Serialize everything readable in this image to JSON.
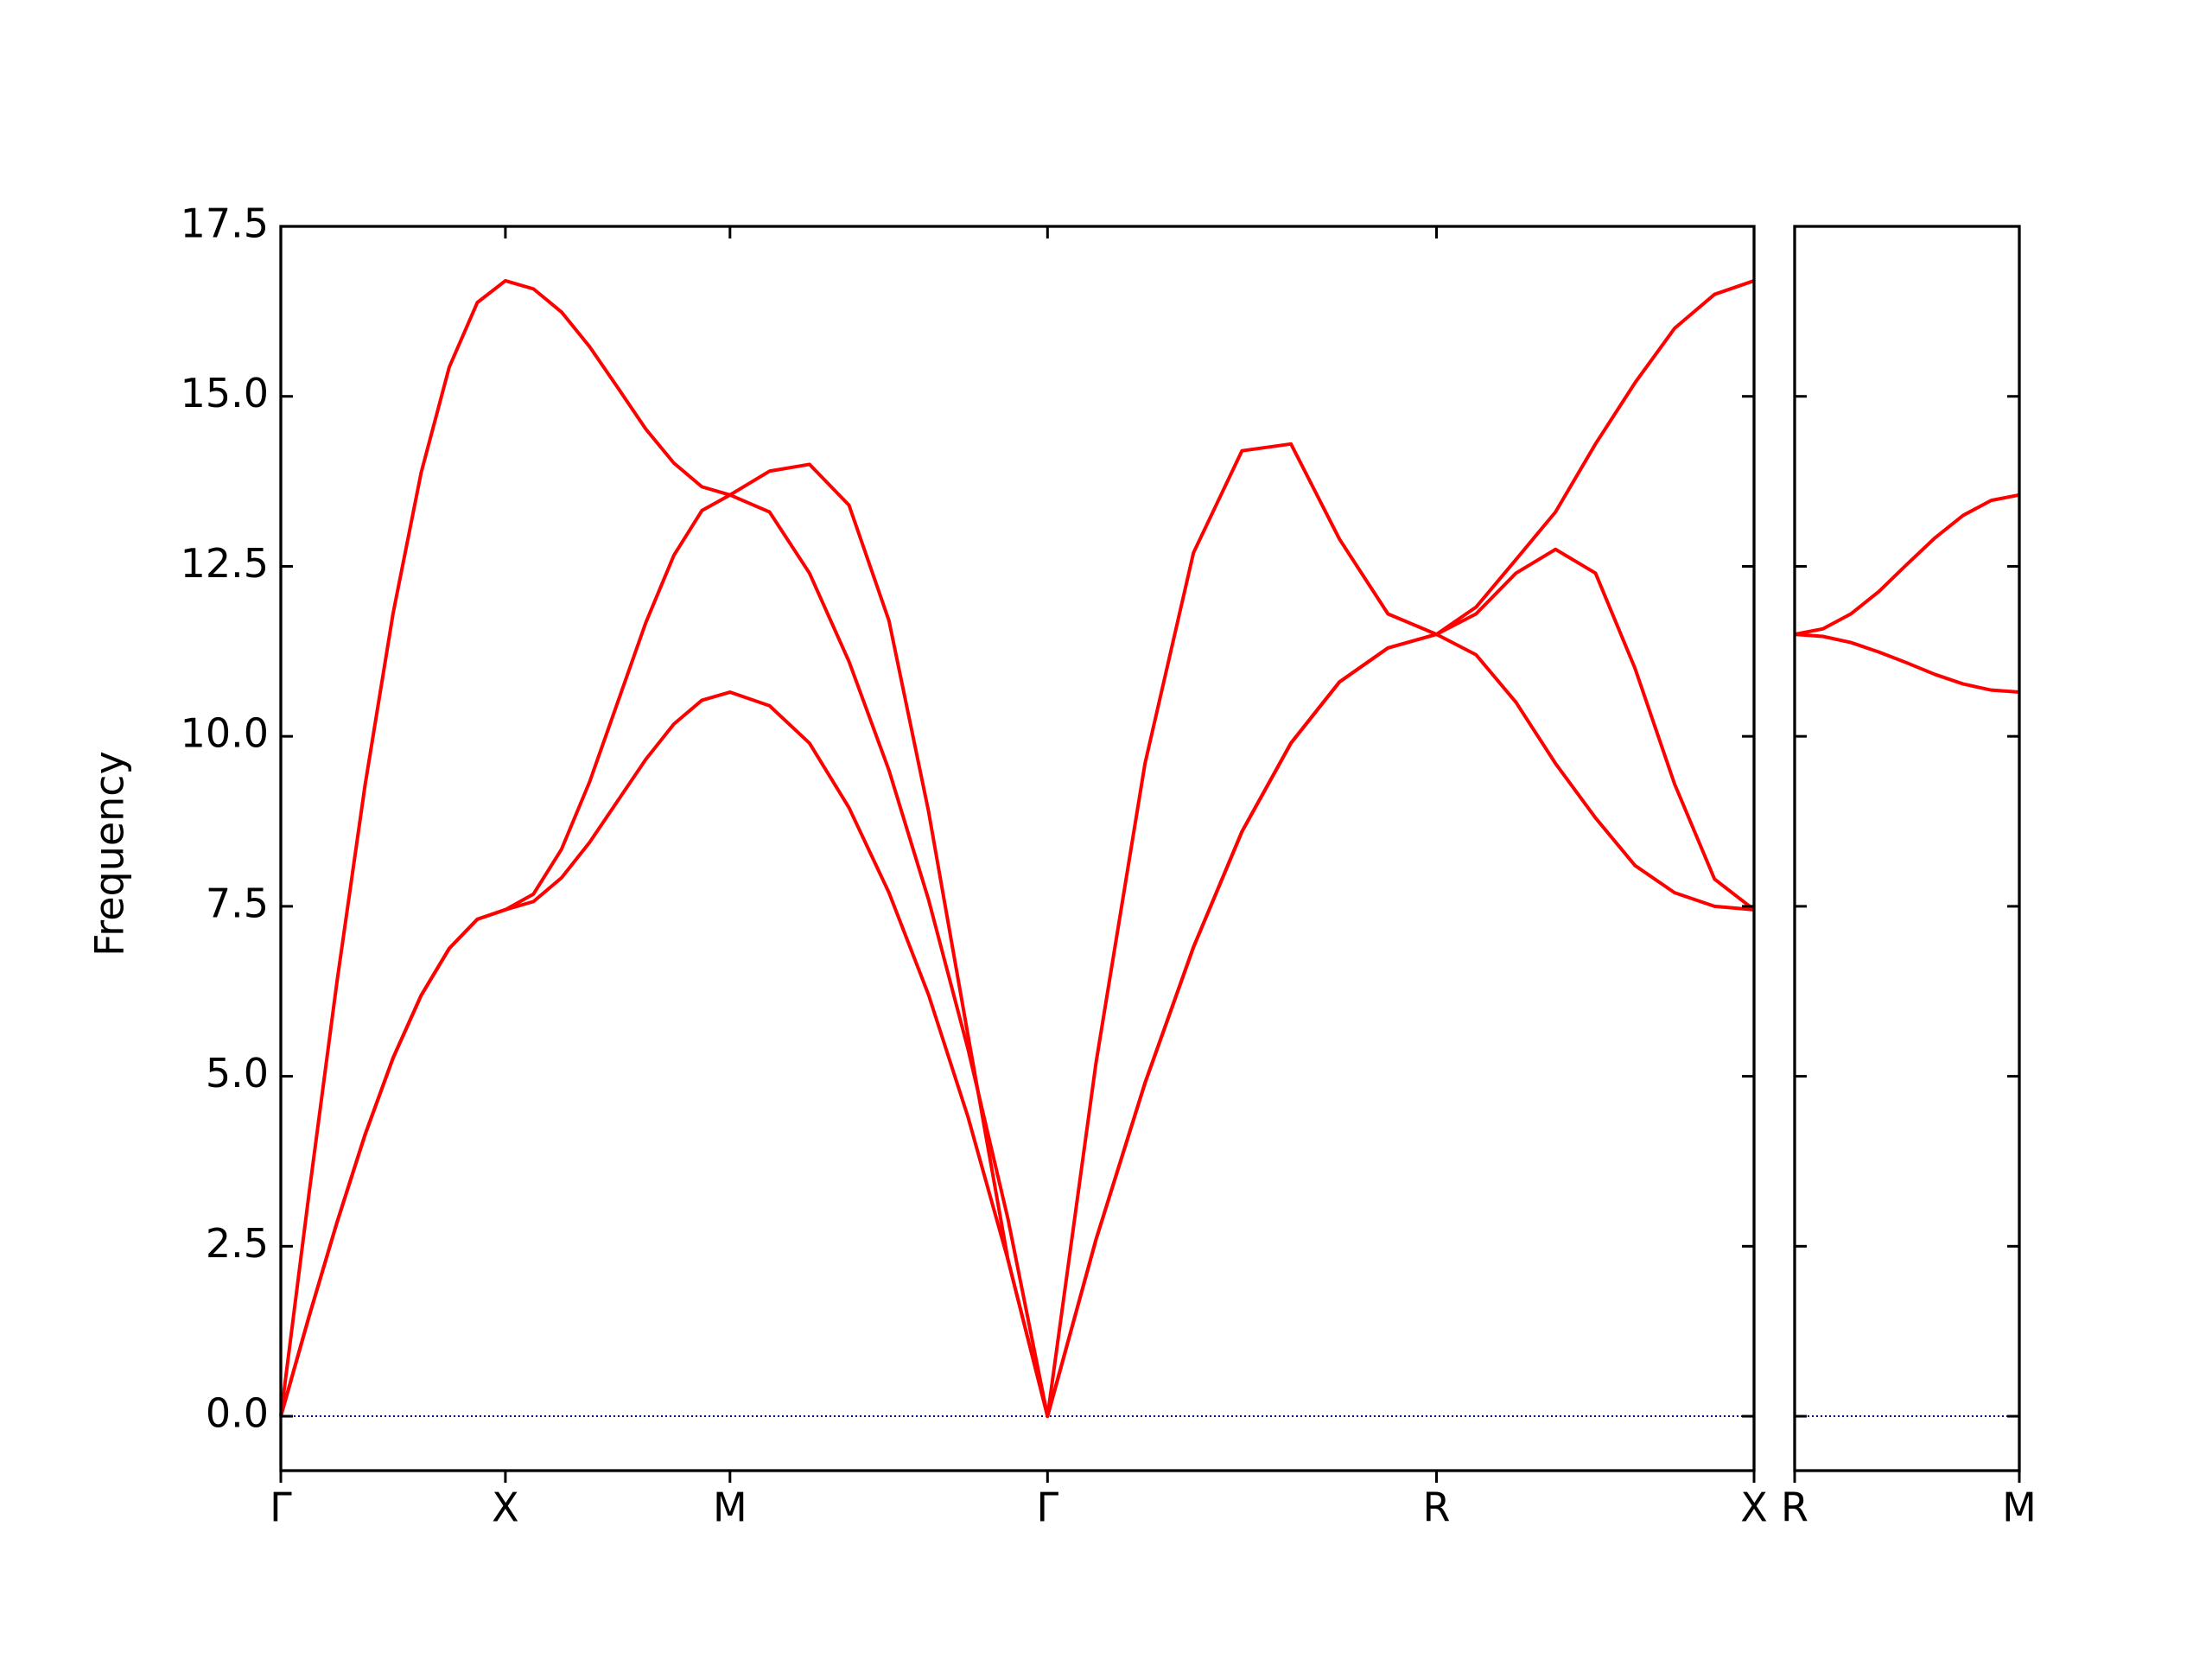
{
  "chart_data": [
    {
      "type": "line",
      "ylabel": "Frequency",
      "x": [
        0,
        0.0625,
        0.125,
        0.1875,
        0.25,
        0.3125,
        0.375,
        0.4375,
        0.5,
        0.5625,
        0.625,
        0.6875,
        0.75,
        0.8125,
        0.875,
        0.9375,
        1.0,
        1.088,
        1.177,
        1.265,
        1.354,
        1.442,
        1.53,
        1.619,
        1.707,
        1.815,
        1.924,
        2.032,
        2.14,
        2.249,
        2.357,
        2.465,
        2.573,
        2.661,
        2.75,
        2.838,
        2.927,
        3.015,
        3.103,
        3.192,
        3.28
      ],
      "series": [
        {
          "color": "#ff0000",
          "values": [
            0,
            1.46,
            2.85,
            4.14,
            5.27,
            6.19,
            6.88,
            7.31,
            7.45,
            7.57,
            7.92,
            8.44,
            9.05,
            9.66,
            10.18,
            10.53,
            10.65,
            10.45,
            9.9,
            8.95,
            7.7,
            6.2,
            4.4,
            2.3,
            0,
            2.6,
            4.9,
            6.9,
            8.6,
            9.9,
            10.8,
            11.3,
            11.5,
            11.2,
            10.5,
            9.6,
            8.8,
            8.1,
            7.7,
            7.5,
            7.45
          ]
        },
        {
          "color": "#ff0000",
          "values": [
            0,
            1.46,
            2.85,
            4.14,
            5.27,
            6.19,
            6.88,
            7.31,
            7.45,
            7.68,
            8.34,
            9.33,
            10.5,
            11.67,
            12.66,
            13.32,
            13.55,
            13.3,
            12.4,
            11.1,
            9.5,
            7.6,
            5.4,
            2.9,
            0,
            2.6,
            4.9,
            6.9,
            8.6,
            9.9,
            10.8,
            11.3,
            11.5,
            11.8,
            12.4,
            12.75,
            12.4,
            11.0,
            9.3,
            7.9,
            7.45
          ]
        },
        {
          "color": "#ff0000",
          "values": [
            0,
            3.26,
            6.39,
            9.28,
            11.81,
            13.88,
            15.43,
            16.38,
            16.7,
            16.58,
            16.24,
            15.73,
            15.13,
            14.52,
            14.02,
            13.67,
            13.55,
            13.9,
            14.0,
            13.4,
            11.7,
            8.9,
            5.6,
            2.3,
            0,
            5.2,
            9.6,
            12.7,
            14.2,
            14.3,
            12.9,
            11.8,
            11.5,
            11.9,
            12.6,
            13.3,
            14.3,
            15.2,
            16.0,
            16.5,
            16.7
          ]
        }
      ],
      "xlim": [
        0,
        3.28
      ],
      "xticks": [
        {
          "value": 0,
          "label": "Γ"
        },
        {
          "value": 0.5,
          "label": "X"
        },
        {
          "value": 1.0,
          "label": "M"
        },
        {
          "value": 1.707,
          "label": "Γ"
        },
        {
          "value": 2.573,
          "label": "R"
        },
        {
          "value": 3.28,
          "label": "X"
        }
      ],
      "ylim": [
        -0.8,
        17.5
      ],
      "yticks": [
        {
          "value": 0,
          "label": "0.0"
        },
        2.5,
        {
          "value": 5,
          "label": "5.0"
        },
        7.5,
        {
          "value": 10,
          "label": "10.0"
        },
        12.5,
        {
          "value": 15,
          "label": "15.0"
        },
        17.5
      ],
      "zero_line": {
        "value": 0,
        "color": "#00008b"
      }
    },
    {
      "type": "line",
      "x": [
        0,
        0.0625,
        0.125,
        0.1875,
        0.25,
        0.3125,
        0.375,
        0.4375,
        0.5
      ],
      "series": [
        {
          "color": "#ff0000",
          "values": [
            11.5,
            11.47,
            11.38,
            11.24,
            11.08,
            10.91,
            10.77,
            10.68,
            10.65
          ]
        },
        {
          "color": "#ff0000",
          "values": [
            11.5,
            11.58,
            11.8,
            12.13,
            12.53,
            12.92,
            13.25,
            13.47,
            13.55
          ]
        }
      ],
      "xlim": [
        0,
        0.5
      ],
      "xticks": [
        {
          "value": 0,
          "label": "R"
        },
        {
          "value": 0.5,
          "label": "M"
        }
      ],
      "ylim": [
        -0.8,
        17.5
      ],
      "yticks": [
        0,
        2.5,
        5,
        7.5,
        10,
        12.5,
        15,
        17.5
      ],
      "ytick_labels": false,
      "zero_line": {
        "value": 0,
        "color": "#00008b"
      }
    }
  ]
}
